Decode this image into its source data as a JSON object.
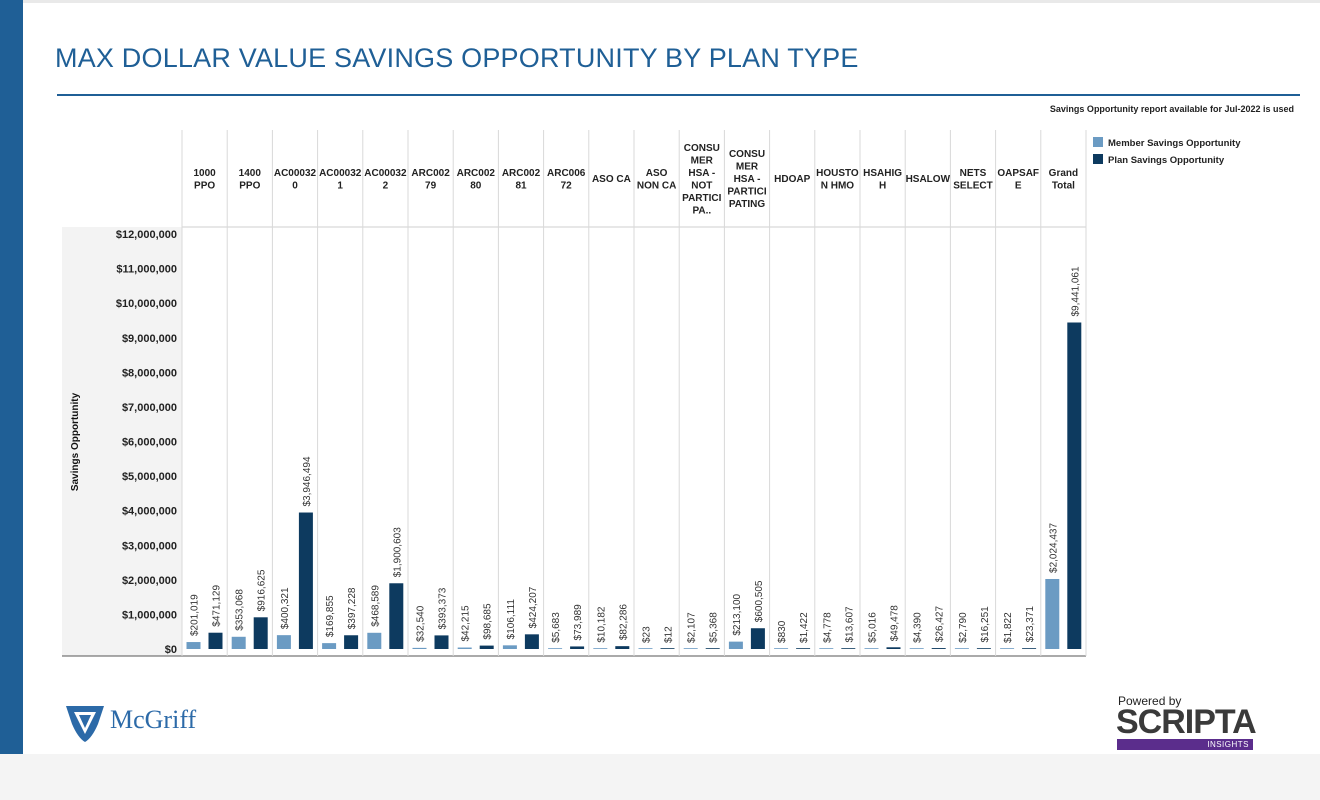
{
  "page": {
    "title": "MAX DOLLAR VALUE SAVINGS OPPORTUNITY BY PLAN TYPE",
    "note": "Savings Opportunity report available for Jul-2022 is used"
  },
  "brand": {
    "left_logo": "McGriff",
    "right_powered": "Powered by",
    "right_name": "SCRIPTA",
    "right_sub": "INSIGHTS",
    "accent": "#1f5f96",
    "purple": "#5b2d8c"
  },
  "chart_data": {
    "type": "bar",
    "ylabel": "Savings Opportunity",
    "ylim": [
      0,
      12000000
    ],
    "yticks": [
      0,
      1000000,
      2000000,
      3000000,
      4000000,
      5000000,
      6000000,
      7000000,
      8000000,
      9000000,
      10000000,
      11000000,
      12000000
    ],
    "ytick_labels": [
      "$0",
      "$1,000,000",
      "$2,000,000",
      "$3,000,000",
      "$4,000,000",
      "$5,000,000",
      "$6,000,000",
      "$7,000,000",
      "$8,000,000",
      "$9,000,000",
      "$10,000,000",
      "$11,000,000",
      "$12,000,000"
    ],
    "categories": [
      [
        "1000",
        "PPO"
      ],
      [
        "1400",
        "PPO"
      ],
      [
        "AC00032",
        "0"
      ],
      [
        "AC00032",
        "1"
      ],
      [
        "AC00032",
        "2"
      ],
      [
        "ARC002",
        "79"
      ],
      [
        "ARC002",
        "80"
      ],
      [
        "ARC002",
        "81"
      ],
      [
        "ARC006",
        "72"
      ],
      [
        "ASO CA"
      ],
      [
        "ASO",
        "NON CA"
      ],
      [
        "CONSU",
        "MER",
        "HSA -",
        "NOT",
        "PARTICI",
        "PA.."
      ],
      [
        "CONSU",
        "MER",
        "HSA -",
        "PARTICI",
        "PATING"
      ],
      [
        "HDOAP"
      ],
      [
        "HOUSTO",
        "N HMO"
      ],
      [
        "HSAHIG",
        "H"
      ],
      [
        "HSALOW"
      ],
      [
        "NETS",
        "SELECT"
      ],
      [
        "OAPSAF",
        "E"
      ],
      [
        "Grand",
        "Total"
      ]
    ],
    "series": [
      {
        "name": "Member Savings Opportunity",
        "color": "#6b9bc3",
        "values": [
          201019,
          353068,
          400321,
          169855,
          468589,
          32540,
          42215,
          106111,
          5683,
          10182,
          23,
          2107,
          213100,
          830,
          4778,
          5016,
          4390,
          2790,
          1822,
          2024437
        ],
        "labels": [
          "$201,019",
          "$353,068",
          "$400,321",
          "$169,855",
          "$468,589",
          "$32,540",
          "$42,215",
          "$106,111",
          "$5,683",
          "$10,182",
          "$23",
          "$2,107",
          "$213,100",
          "$830",
          "$4,778",
          "$5,016",
          "$4,390",
          "$2,790",
          "$1,822",
          "$2,024,437"
        ]
      },
      {
        "name": "Plan Savings Opportunity",
        "color": "#0d3a5f",
        "values": [
          471129,
          916625,
          3946494,
          397228,
          1900603,
          393373,
          98685,
          424207,
          73989,
          82286,
          12,
          5368,
          600505,
          1422,
          13607,
          49478,
          26427,
          16251,
          23371,
          9441061
        ],
        "labels": [
          "$471,129",
          "$916,625",
          "$3,946,494",
          "$397,228",
          "$1,900,603",
          "$393,373",
          "$98,685",
          "$424,207",
          "$73,989",
          "$82,286",
          "$12",
          "$5,368",
          "$600,505",
          "$1,422",
          "$13,607",
          "$49,478",
          "$26,427",
          "$16,251",
          "$23,371",
          "$9,441,061"
        ]
      }
    ],
    "legend_position": "top-right"
  }
}
